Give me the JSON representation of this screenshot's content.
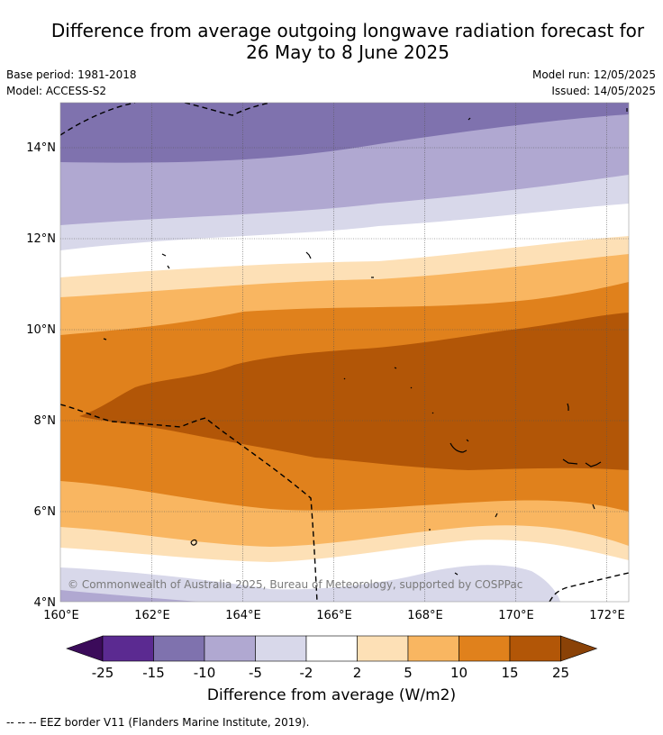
{
  "title": {
    "line1": "Difference from average outgoing longwave radiation forecast for",
    "line2": "26 May to 8 June 2025"
  },
  "meta": {
    "base_period": "Base period: 1981-2018",
    "model": "Model: ACCESS-S2",
    "model_run": "Model run: 12/05/2025",
    "issued": "Issued: 14/05/2025"
  },
  "map": {
    "lon_labels": [
      "160°E",
      "162°E",
      "164°E",
      "166°E",
      "168°E",
      "170°E",
      "172°E"
    ],
    "lat_labels": [
      "14°N",
      "12°N",
      "10°N",
      "8°N",
      "6°N",
      "4°N"
    ],
    "copyright": "© Commonwealth of Australia 2025, Bureau of Meteorology, supported by COSPPac"
  },
  "colorbar": {
    "ticks": [
      "-25",
      "-15",
      "-10",
      "-5",
      "-2",
      "2",
      "5",
      "10",
      "15",
      "25"
    ],
    "colors": [
      "#5b2a91",
      "#7f72ae",
      "#b0a8d1",
      "#d8d8ea",
      "#ffffff",
      "#fde0b6",
      "#f9b661",
      "#e0811c",
      "#b25607"
    ],
    "extend_low_color": "#3b0b5a",
    "extend_high_color": "#8a4207",
    "label": "Difference from average (W/m2)"
  },
  "footer": "--  --  -- EEZ border V11 (Flanders Marine Institute, 2019)."
}
